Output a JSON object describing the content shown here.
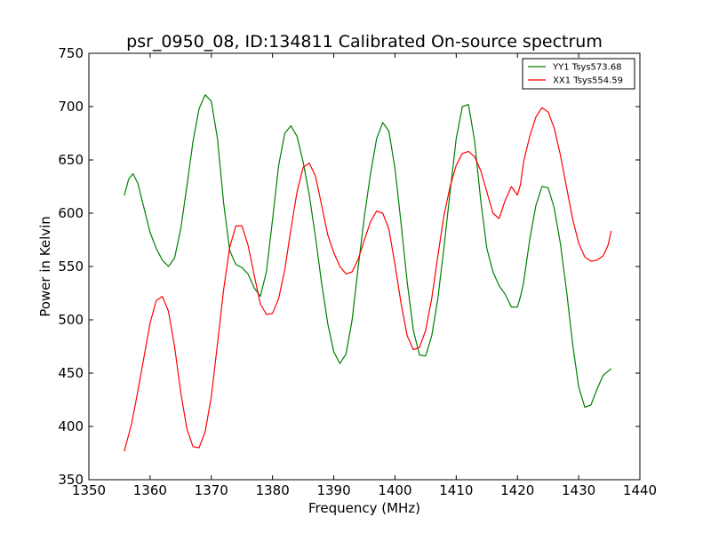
{
  "chart_data": {
    "type": "line",
    "title": "psr_0950_08, ID:134811 Calibrated On-source spectrum",
    "xlabel": "Frequency (MHz)",
    "ylabel": "Power in Kelvin",
    "xlim": [
      1350,
      1440
    ],
    "ylim": [
      350,
      750
    ],
    "xticks": [
      1350,
      1360,
      1370,
      1380,
      1390,
      1400,
      1410,
      1420,
      1430,
      1440
    ],
    "yticks": [
      350,
      400,
      450,
      500,
      550,
      600,
      650,
      700,
      750
    ],
    "legend": {
      "placement": "top-right"
    },
    "grid": false,
    "series": [
      {
        "name": "YY1 Tsys573.68",
        "color": "#008000",
        "x": [
          1355.8,
          1356.5,
          1357.2,
          1358.0,
          1359.0,
          1360.0,
          1361.0,
          1362.0,
          1363.0,
          1364.0,
          1365.0,
          1366.0,
          1367.0,
          1368.0,
          1369.0,
          1370.0,
          1371.0,
          1372.0,
          1373.0,
          1374.0,
          1375.0,
          1376.0,
          1377.0,
          1378.0,
          1379.0,
          1380.0,
          1381.0,
          1382.0,
          1383.0,
          1384.0,
          1385.0,
          1386.0,
          1387.0,
          1388.0,
          1389.0,
          1390.0,
          1391.0,
          1392.0,
          1393.0,
          1394.0,
          1395.0,
          1396.0,
          1397.0,
          1398.0,
          1399.0,
          1400.0,
          1401.0,
          1402.0,
          1403.0,
          1404.0,
          1405.0,
          1406.0,
          1407.0,
          1408.0,
          1409.0,
          1410.0,
          1411.0,
          1412.0,
          1413.0,
          1414.0,
          1415.0,
          1416.0,
          1417.0,
          1418.0,
          1419.0,
          1420.0,
          1420.5,
          1421.0,
          1422.0,
          1423.0,
          1424.0,
          1425.0,
          1426.0,
          1427.0,
          1428.0,
          1429.0,
          1430.0,
          1431.0,
          1432.0,
          1433.0,
          1434.0,
          1435.3
        ],
        "values": [
          617,
          632,
          637,
          628,
          605,
          582,
          567,
          556,
          550,
          558,
          585,
          625,
          667,
          698,
          711,
          705,
          670,
          610,
          565,
          552,
          549,
          543,
          530,
          522,
          545,
          594,
          645,
          675,
          682,
          672,
          648,
          617,
          578,
          535,
          497,
          470,
          459,
          468,
          500,
          550,
          597,
          637,
          670,
          685,
          677,
          642,
          590,
          535,
          490,
          467,
          466,
          485,
          520,
          568,
          620,
          670,
          700,
          702,
          668,
          612,
          567,
          545,
          532,
          524,
          512,
          512,
          522,
          535,
          575,
          607,
          625,
          624,
          605,
          572,
          528,
          478,
          437,
          418,
          420,
          435,
          448,
          454
        ]
      },
      {
        "name": "XX1 Tsys554.59",
        "color": "#ff0000",
        "x": [
          1355.8,
          1357.0,
          1358.0,
          1359.0,
          1360.0,
          1361.0,
          1362.0,
          1363.0,
          1364.0,
          1365.0,
          1366.0,
          1367.0,
          1368.0,
          1369.0,
          1370.0,
          1371.0,
          1372.0,
          1373.0,
          1374.0,
          1375.0,
          1376.0,
          1377.0,
          1378.0,
          1379.0,
          1380.0,
          1381.0,
          1382.0,
          1383.0,
          1384.0,
          1385.0,
          1386.0,
          1387.0,
          1388.0,
          1389.0,
          1390.0,
          1391.0,
          1392.0,
          1393.0,
          1394.0,
          1395.0,
          1396.0,
          1397.0,
          1398.0,
          1399.0,
          1400.0,
          1401.0,
          1402.0,
          1403.0,
          1404.0,
          1405.0,
          1406.0,
          1407.0,
          1408.0,
          1409.0,
          1410.0,
          1411.0,
          1412.0,
          1413.0,
          1414.0,
          1415.0,
          1416.0,
          1417.0,
          1418.0,
          1419.0,
          1420.0,
          1420.5,
          1421.0,
          1422.0,
          1423.0,
          1424.0,
          1425.0,
          1426.0,
          1427.0,
          1428.0,
          1429.0,
          1430.0,
          1431.0,
          1432.0,
          1433.0,
          1434.0,
          1434.8,
          1435.3
        ],
        "values": [
          377,
          403,
          433,
          465,
          497,
          518,
          522,
          508,
          475,
          432,
          398,
          381,
          380,
          395,
          428,
          477,
          528,
          568,
          588,
          588,
          570,
          542,
          515,
          505,
          506,
          520,
          547,
          585,
          620,
          643,
          647,
          635,
          608,
          580,
          563,
          550,
          543,
          545,
          557,
          575,
          592,
          602,
          600,
          585,
          552,
          515,
          485,
          472,
          474,
          490,
          520,
          560,
          598,
          625,
          645,
          656,
          658,
          653,
          640,
          620,
          600,
          595,
          612,
          625,
          617,
          627,
          648,
          672,
          690,
          699,
          695,
          680,
          655,
          625,
          595,
          572,
          559,
          555,
          556,
          560,
          570,
          583
        ]
      }
    ]
  }
}
